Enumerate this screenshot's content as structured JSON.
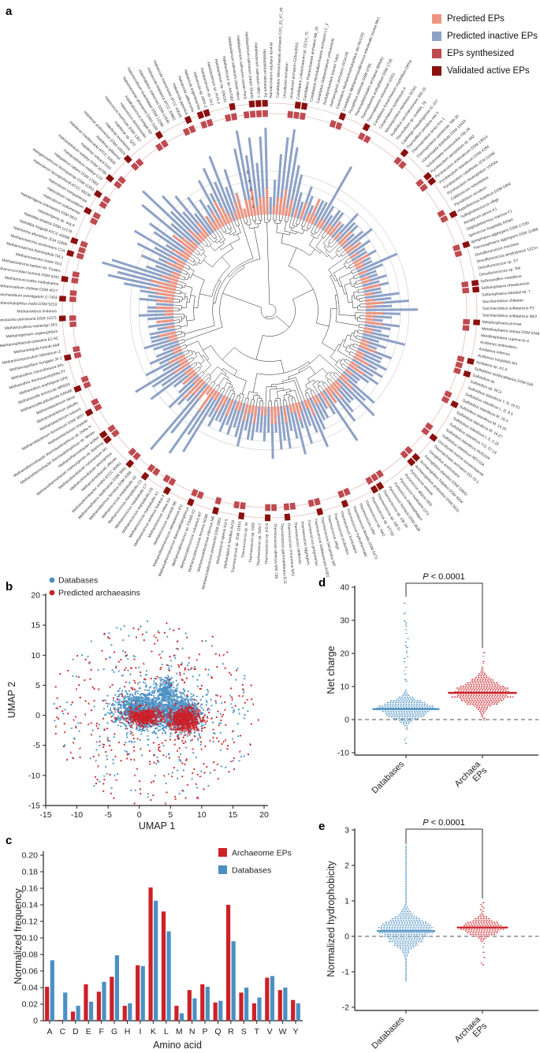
{
  "panels": {
    "a": "a",
    "b": "b",
    "c": "c",
    "d": "d",
    "e": "e"
  },
  "panel_a": {
    "legend": [
      {
        "label": "Predicted EPs",
        "color": "#ee9581"
      },
      {
        "label": "Predicted inactive EPs",
        "color": "#8ea2c7"
      },
      {
        "label": "EPs synthesized",
        "color": "#bf4a50"
      },
      {
        "label": "Validated active EPs",
        "color": "#8a100e"
      }
    ],
    "radial_scale_ticks": [
      "1",
      "2",
      "3",
      "4",
      "5"
    ],
    "species": [
      "Halobacterium salinarum NRC-1",
      "Halobacterium salinarum R1",
      "Nanoarchaeum equitans Kin4-M",
      "Candidatus Micrarchaeota archaeon CG1_02_47_40",
      "Uncultured archaeon",
      "Uncultured archaeon GZfos26G2",
      "Candidatus Lokiarchaeum sp. GC14_75",
      "Candidatus Thorarchaeota archaeon AB_25",
      "Candidatus Heimdallarchaeota archaeon LC_2",
      "Candidatus Odinarchaeum yellowstonii",
      "Aciduliprofundum boonei T469",
      "methanogenic archaeon ISO4-H5",
      "Candidatus Methanomethylophilus alvi Mx1201",
      "Candidatus Methanomassiliicoccus intestinalis Issoire-Mx1",
      "Picrophilus oshimae DSM 9789",
      "Thermoplasmatales archaeon BRNA1",
      "Thermoplasma acidophilum DSM 1728",
      "Thermoplasma volcanium GSS1",
      "Candidatus Korarchaeum cryptofilum OPF8",
      "Cenarchaeum symbiosum A",
      "Nitrosopumilus maritimus SCM1",
      "Acidilobus saccharovorans 345-15",
      "Thermofilum sp. ex4484_79",
      "Caldivirga maquilingensis IC-167",
      "Thermofilum pendens Hrk 5",
      "Thermoproteus tenax Kra 1",
      "Thermoproteus uzoniensis 768-20",
      "Vulcanisaeta distributa DSM 14429",
      "Vulcanisaeta moutnovskia 768-28",
      "Pyrobaculum aerophilum str. IM2",
      "Pyrobaculum arsenaticum DSM 13514",
      "Pyrobaculum islandicum DSM 4184",
      "Pyrobaculum calidifontis JCM 11548",
      "Pyrobaculum neutrophilum V24Sta",
      "Caldococcus noboribetus",
      "Pyrodictium occultum",
      "Hyperthermus butylicus DSM 5456",
      "Sulfophobococcus zilligii",
      "Aeropyrum pernix K1",
      "Staphylothermus marinus F1",
      "Ignicoccus hospitalis KIN4/I",
      "Ignisphaera aggregans DSM 17230",
      "Thermosphaera aggregans DSM 11486",
      "Desulfurococcus mucosus",
      "Desulfurococcus amylolyticus 1221n",
      "Desulfurococcus sp. SY",
      "Desulfurococcus sp. Tok",
      "Sulfuracidifex metallicus",
      "Sulfurisphaera ohwakuensis",
      "Sulfurisphaera tokodaii str. 7",
      "Saccharolobus shibatae",
      "Saccharolobus solfataricus P2",
      "Saccharolobus solfataricus 98/2",
      "Metallosphaera prunae",
      "Metallosphaera sedula DSM 5348",
      "Metallosphaera cuprina Ar-4",
      "Acidianus ambivalens",
      "Acidianus infernus",
      "Acidianus hospitalis W1",
      "Acidianus sp. A1-3",
      "Sulfolobus acidocaldarius DSM 639",
      "Sulfolobus sp.",
      "Sulfolobus sp. RC3",
      "Sulfolobus islandicus Y. N. 15.51",
      "Sulfolobus islandicus L. D. 8.5",
      "Sulfolobus islandicus M. 16.4",
      "Sulfolobus islandicus M. 14.25",
      "Sulfolobus islandicus M. 16.27",
      "Sulfolobus islandicus L.S. 2.15",
      "Sulfolobus islandicus Y.G. 57.14",
      "Sulfolobus islandicus HVE10/4",
      "Sulfolobus islandicus REY15A",
      "Uncultured marine euryarchaeote",
      "Theonarchaea archaeon DG-70-1",
      "Geoglobus acetivorans",
      "Ferroglobus placidus DSM 10642",
      "Archaeoglobus fulgidus DSM 4304",
      "Archaeoglobus profundus DSM 5631",
      "Pyrococcus woesei",
      "Pyrococcus abyssi GE5",
      "Pyrococcus horikoshii OT3",
      "Pyrococcus chitonophagus",
      "Pyrococcus furiosus DSM 3638",
      "Thermococcus sp. GB-3A",
      "Thermococcus sp. GB-D",
      "Thermococcus sp. ST700",
      "Thermococcus sp. NA2",
      "Thermococcus celer",
      "Thermococcus litoralis DSM 5473",
      "Thermococcus hydrothermalis",
      "Thermococcus fumicolans",
      "Thermococcus profundus",
      "Thermococcus zilligii",
      "Thermococcus barophilus MP",
      "Thermococcus kodakarensis KOD1",
      "Thermococcus gorgonarius",
      "Thermococcus aggregans",
      "Thermococcus cleftensis",
      "Thermococcus onnurineus NA1",
      "Thermococcus gammatolerans EJ3",
      "Thermococcus sibiricus MM 739",
      "Thermococcus sp. KS-8",
      "Thermococcus sp. 9oN-7",
      "Thermococcus sp. GE8",
      "Thermococcus sp. KI",
      "Thermococcus sp. JCM 11816",
      "Methanopyrus kandleri AV19",
      "Methanotorris igneus Kol 5",
      "Methanocaldococcus jannaschii DSM 2661",
      "Methanocaldococcus infernus ME",
      "Methanocaldococcus fervens AG86",
      "Methanocaldococcus vulcanius M7",
      "Methanocaldococcus sp. FS406-22",
      "Methanothermococcus thermolithotrophicus",
      "Methanothermococcus okinawensis IH1",
      "Methanococcus vannielii SB",
      "Methanococcus voltae A3",
      "Methanococcus aeolicus Nankai-3",
      "Methanococcus maripaludis X1",
      "Methanococcus maripaludis C6",
      "Methanococcus maripaludis C7",
      "Methanococcus maripaludis C5",
      "Methanococcus maripaludis S2",
      "Methanothermus fervidus DSM 2088",
      "Methanosphaera stadtmanae DSM 3091",
      "Methanobrevibacter smithii ATCC 35061",
      "Methanobrevibacter olleyae",
      "Methanobrevibacter arboriphilus",
      "Methanobrevibacter ruminantium M1",
      "Methanothermobacter marburgensis str. Marburg",
      "Methanothermobacter wolfeii",
      "Methanothermobacter thermautotrophicus str. Winter",
      "Methanothermobacter thermautotrophicus str. Delta H",
      "Methanobacterium bryantii",
      "Methanobacterium formicicum DSM 3637",
      "Methanobacterium ivanovii",
      "Methanobacterium paludis",
      "Methanobacterium lacus",
      "Methanocella paludicola SANAE",
      "Methanocella arvoryzae MRE50",
      "Methanothrix soehngenii GP6",
      "Methanothrix thermoacetophila PT",
      "Methanothrix harundinacea 6Ac",
      "Methanospirillum hungatei JF-1",
      "Methanocorpusculum labreanum Z",
      "Methanoregula boonei 6A8",
      "Methanosphaerula palustris E1-9C",
      "Methanogenium organophilum",
      "Methanoculleus marisnigri JR1",
      "Methanolacinia petrolearia DSM 11571",
      "Methanolobus tindarius",
      "Methanohalophilus mahii DSM 5219",
      "Methanohalobium evestigatum Z-7303",
      "Methanosalsum zhilinae DSM 4017",
      "Methanococcoides methylutens",
      "Methanococcoides burtonii DSM 6242",
      "Methanosarcina barkeri str. Fusaro",
      "Methanosarcina mazei Go1",
      "Methanosarcina thermophila TM-1",
      "Methanosarcina acetivorans C2A",
      "Natrinema altunense JCM 12890",
      "Natrialba magadii ATCC 43099",
      "Natrialba asiatica DSM 12278",
      "Haloterrigena sp. arg-4",
      "Haloterrigena turkmenica DSM 5511",
      "Halorubrum sodomense",
      "Halorubrum vacuolatum",
      "Halorubrum ezequielense",
      "Halorubrum lacusprofundi ATCC 49239",
      "Halogeometricum borinquense DSM 11551",
      "Haloplanus natans DSM 17983",
      "Haloquadratum walsbyi C23",
      "Haloquadratum walsbyi DSM 16790",
      "Haloferax volcanii DS2",
      "Haloferax mediterranei ATCC 33500",
      "Haloferax gibbonsii",
      "Haloferax prahovense DSM 14919",
      "Haloferax lucentense",
      "Haloferax sp. Q22",
      "Halococcus morrhuae DSM 1307",
      "Halococcus dombrowskii",
      "Halalkalicoccus jeotgali B3",
      "Natronomonas pharaonis DSM 2160",
      "Halomicrobium mukohataei DSM 12286",
      "Halorhabdus utahensis DSM 12940",
      "Haloarcula hispanica ATCC 33960",
      "Haloarcula marismortui ATCC 43049",
      "Haloarcula japonica",
      "Haloarcula vallismortis",
      "Haloarcula argentinensis",
      "Haloarcula sp. ARG-2",
      "Halobacterium sp. DL1",
      "Halobacterium sp. AUS-2",
      "Halobacterium sp. GN101",
      "Halobacterium sp. AS7092",
      "Halobacterium salinarum (strain Mex)",
      "Halobacterium salinarum (strain Port)",
      "Halobacterium salinarum (strain Shark)"
    ],
    "predicted_eps_levels": "230122312010201310110112010210120102110101102010121021120110011201120120101201121202011021012110201220110211201102012011312023102110211201100112010201120212323121102120211321021120021213210123122312",
    "inactive_levels": "9a2479a865324322338323322433234232232253223232243536432432352324334343432254633452732334643536435453634334435434343343869 7a34532364573534323433323234332434687984353647356384957463524364758463 8a79689",
    "synthesized_flags": "110001110000110001100000110001100001100001100001100001100001110001100001100011000011100011000110011011000110010011000110110011000110001100110001100011001101100111000110110011001100011000110110011011",
    "validated_flags": "110000110000010001000000100001100000100001000001100001000001010000100000100011000001100001000100001001000100010001000100010010000110001000100001000001001001000101000010010010001000001000010110001001"
  },
  "chart_data": [
    {
      "id": "a",
      "type": "circular_phylo_barplot",
      "description": "Radial phylogenetic tree of archaea; inner salmon bars = predicted EPs per species, blue bars = predicted inactive EPs (radial scale 1-5), outer ring blocks = EPs synthesized and validated active EPs",
      "radial_scale": [
        1,
        2,
        3,
        4,
        5
      ]
    },
    {
      "id": "b",
      "type": "scatter",
      "xlabel": "UMAP 1",
      "ylabel": "UMAP 2",
      "xlim": [
        -15,
        20
      ],
      "ylim": [
        -15,
        20
      ],
      "xticks": [
        -15,
        -10,
        -5,
        0,
        5,
        10,
        15,
        20
      ],
      "yticks": [
        -15,
        -10,
        -5,
        0,
        5,
        10,
        15,
        20
      ],
      "legend": [
        {
          "label": "Databases",
          "color": "#4b90c3"
        },
        {
          "label": "Predicted archaeasins",
          "color": "#cc2127"
        }
      ],
      "clusters": [
        {
          "series": "Databases",
          "color": "#4b90c3",
          "kind": "gauss",
          "cx": 1.2,
          "cy": 0.8,
          "sx": 2.4,
          "sy": 1.7,
          "n": 950
        },
        {
          "series": "Databases",
          "color": "#4b90c3",
          "kind": "gauss",
          "cx": 6.8,
          "cy": 0.3,
          "sx": 1.7,
          "sy": 1.5,
          "n": 750
        },
        {
          "series": "Databases",
          "color": "#4b90c3",
          "kind": "gauss",
          "cx": 4.3,
          "cy": 4.2,
          "sx": 0.8,
          "sy": 1.2,
          "n": 220
        },
        {
          "series": "Databases",
          "color": "#4b90c3",
          "kind": "gauss",
          "cx": -1.5,
          "cy": 1.3,
          "sx": 1.0,
          "sy": 0.8,
          "n": 150
        },
        {
          "series": "Databases",
          "color": "#4b90c3",
          "kind": "ring",
          "cx": 2.5,
          "cy": 0.5,
          "r0": 4.5,
          "r1": 16.5,
          "n": 270
        },
        {
          "series": "Predicted archaeasins",
          "color": "#cc2127",
          "kind": "ring",
          "cx": 2.5,
          "cy": 0.3,
          "r0": 5,
          "r1": 16.8,
          "n": 340
        },
        {
          "series": "Predicted archaeasins",
          "color": "#cc2127",
          "kind": "gauss",
          "cx": 0.9,
          "cy": -0.2,
          "sx": 1.5,
          "sy": 0.75,
          "n": 430
        },
        {
          "series": "Predicted archaeasins",
          "color": "#cc2127",
          "kind": "gauss",
          "cx": 7.3,
          "cy": -0.7,
          "sx": 1.3,
          "sy": 1.0,
          "n": 540
        }
      ]
    },
    {
      "id": "c",
      "type": "bar",
      "xlabel": "Amino acid",
      "ylabel": "Normalized frequency",
      "ylim": [
        0,
        0.2
      ],
      "yticks": [
        0,
        0.02,
        0.04,
        0.06,
        0.08,
        0.1,
        0.12,
        0.14,
        0.16,
        0.18,
        0.2
      ],
      "categories": [
        "A",
        "C",
        "D",
        "E",
        "F",
        "G",
        "H",
        "I",
        "K",
        "L",
        "M",
        "N",
        "P",
        "Q",
        "R",
        "S",
        "T",
        "V",
        "W",
        "Y"
      ],
      "series": [
        {
          "name": "Archaeome EPs",
          "color": "#cc2127",
          "values": [
            0.041,
            0.001,
            0.011,
            0.044,
            0.035,
            0.053,
            0.018,
            0.067,
            0.161,
            0.132,
            0.018,
            0.037,
            0.044,
            0.022,
            0.14,
            0.034,
            0.021,
            0.052,
            0.037,
            0.025
          ]
        },
        {
          "name": "Databases",
          "color": "#4b90c3",
          "values": [
            0.073,
            0.034,
            0.018,
            0.023,
            0.047,
            0.079,
            0.021,
            0.066,
            0.145,
            0.108,
            0.009,
            0.027,
            0.041,
            0.024,
            0.096,
            0.04,
            0.028,
            0.054,
            0.04,
            0.021
          ]
        }
      ]
    },
    {
      "id": "d",
      "type": "beeswarm",
      "ylabel": "Net charge",
      "ylim": [
        -10,
        40
      ],
      "yticks": [
        -10,
        0,
        10,
        20,
        30,
        40
      ],
      "annotation": "P < 0.0001",
      "zero_line": 0,
      "groups": [
        {
          "name": "Databases",
          "label_lines": [
            "Databases"
          ],
          "color": "#4b90c3",
          "median": 3.2,
          "spread": 2.1,
          "min": -9.3,
          "max": 36.5,
          "tail": "dots"
        },
        {
          "name": "Archaea EPs",
          "label_lines": [
            "Archaea",
            "EPs"
          ],
          "color": "#cc2127",
          "median": 8.1,
          "spread": 2.7,
          "min": -1.2,
          "max": 20.5,
          "tail": "dots"
        }
      ]
    },
    {
      "id": "e",
      "type": "beeswarm",
      "ylabel": "Normalized hydrophobicity",
      "ylim": [
        -2,
        3
      ],
      "yticks": [
        -2,
        -1,
        0,
        1,
        2,
        3
      ],
      "annotation": "P < 0.0001",
      "zero_line": 0,
      "groups": [
        {
          "name": "Databases",
          "label_lines": [
            "Databases"
          ],
          "color": "#4b90c3",
          "median": 0.15,
          "spread": 0.3,
          "min": -1.25,
          "max": 2.55,
          "tail": "line"
        },
        {
          "name": "Archaea EPs",
          "label_lines": [
            "Archaea",
            "EPs"
          ],
          "color": "#cc2127",
          "median": 0.25,
          "spread": 0.17,
          "min": -0.8,
          "max": 1.0,
          "tail": "dots"
        }
      ]
    }
  ]
}
